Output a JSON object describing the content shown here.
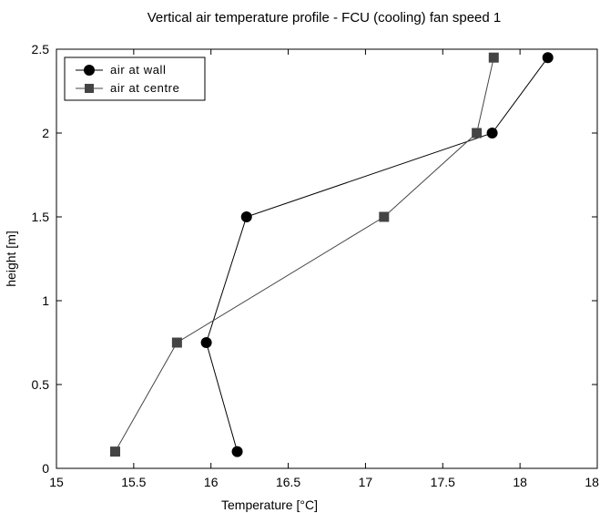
{
  "chart_data": {
    "type": "line",
    "title": "Vertical air temperature profile - FCU (cooling) fan speed 1",
    "xlabel": "Temperature [°C]",
    "ylabel": "height [m]",
    "xlim": [
      15,
      18.5
    ],
    "ylim": [
      0,
      2.5
    ],
    "x_ticks": [
      "15",
      "15.5",
      "16",
      "16.5",
      "17",
      "17.5",
      "18",
      "18.5"
    ],
    "y_ticks": [
      "0",
      "0.5",
      "1",
      "1.5",
      "2",
      "2.5"
    ],
    "grid": false,
    "legend_position": "top-left",
    "series": [
      {
        "name": "air at wall",
        "marker": "circle",
        "color": "#000000",
        "points": [
          {
            "x": 16.17,
            "y": 0.1
          },
          {
            "x": 15.97,
            "y": 0.75
          },
          {
            "x": 16.23,
            "y": 1.5
          },
          {
            "x": 17.82,
            "y": 2.0
          },
          {
            "x": 18.18,
            "y": 2.45
          }
        ]
      },
      {
        "name": "air at centre",
        "marker": "square",
        "color": "#444444",
        "points": [
          {
            "x": 15.38,
            "y": 0.1
          },
          {
            "x": 15.78,
            "y": 0.75
          },
          {
            "x": 17.12,
            "y": 1.5
          },
          {
            "x": 17.72,
            "y": 2.0
          },
          {
            "x": 17.83,
            "y": 2.45
          }
        ]
      }
    ]
  }
}
